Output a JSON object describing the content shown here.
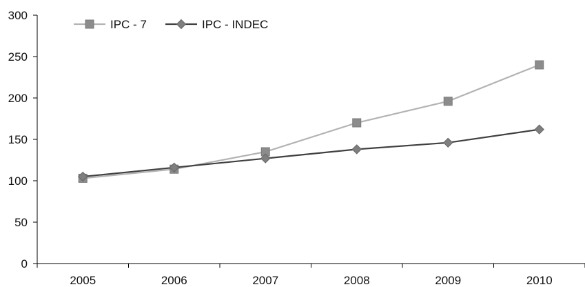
{
  "chart_data": {
    "type": "line",
    "title": "",
    "xlabel": "",
    "ylabel": "",
    "categories": [
      "2005",
      "2006",
      "2007",
      "2008",
      "2009",
      "2010"
    ],
    "ylim": [
      0,
      300
    ],
    "yticks": [
      0,
      50,
      100,
      150,
      200,
      250,
      300
    ],
    "grid": false,
    "legend_position": "top-left",
    "series": [
      {
        "name": "IPC - 7",
        "values": [
          103,
          114,
          135,
          170,
          196,
          240
        ],
        "color": "#b3b3b3",
        "marker": "square",
        "marker_color": "#8c8c8c"
      },
      {
        "name": "IPC - INDEC",
        "values": [
          105,
          116,
          127,
          138,
          146,
          162
        ],
        "color": "#404040",
        "marker": "diamond",
        "marker_color": "#7f7f7f"
      }
    ]
  }
}
